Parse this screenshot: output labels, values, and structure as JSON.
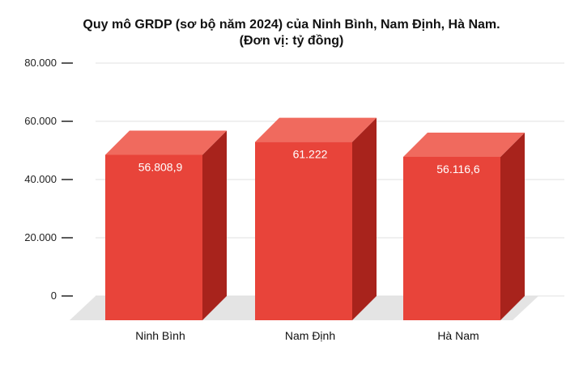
{
  "chart_data": {
    "type": "bar",
    "title": "Quy mô GRDP (sơ bộ năm 2024) của Ninh Bình, Nam Định, Hà Nam.",
    "subtitle": "(Đơn vị: tỷ đồng)",
    "categories": [
      "Ninh Bình",
      "Nam Định",
      "Hà Nam"
    ],
    "values": [
      56808.9,
      61222,
      56116.6
    ],
    "data_labels": [
      "56.808,9",
      "61.222",
      "56.116,6"
    ],
    "y_ticks": [
      0,
      20000,
      40000,
      60000,
      80000
    ],
    "y_tick_labels": [
      "0",
      "20.000",
      "40.000",
      "60.000",
      "80.000"
    ],
    "ylim": [
      0,
      80000
    ],
    "xlabel": "",
    "ylabel": "",
    "grid": true,
    "legend": "none",
    "style": "3d-bar"
  },
  "colors": {
    "bar_front": "#e8443a",
    "bar_top": "#f06a5e",
    "bar_side": "#a8231c",
    "floor": "#e4e4e4",
    "grid": "#e0e0e0"
  }
}
